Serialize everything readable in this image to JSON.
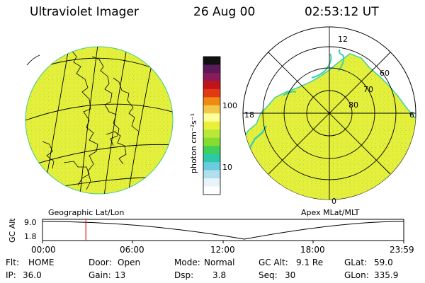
{
  "header": {
    "instrument": "Ultraviolet Imager",
    "date": "26 Aug 00",
    "time": "02:53:12 UT"
  },
  "panels": {
    "left_caption": "Geographic Lat/Lon",
    "right_caption": "Apex MLat/MLT"
  },
  "colorbar": {
    "unit_label": "photon cm⁻²s⁻¹",
    "tick_100": "100",
    "tick_10": "10",
    "colors": [
      "#111111",
      "#5a1a5a",
      "#8a1a5a",
      "#c0141a",
      "#e03a14",
      "#f08a10",
      "#f2c84a",
      "#ffff9a",
      "#e8f03a",
      "#b8e83a",
      "#88dc30",
      "#3ed05a",
      "#2cc8a8",
      "#6acce0",
      "#b0e0ee",
      "#e8f4f8",
      "#ffffff"
    ]
  },
  "polar": {
    "mlt_top": "12",
    "mlt_left": "18",
    "mlt_right": "6",
    "mlt_bottom": "0",
    "lat_60": "60",
    "lat_70": "70",
    "lat_80": "80"
  },
  "timeline": {
    "ylabel": "GC Alt",
    "y_top": "9.0",
    "y_bottom": "1.8",
    "ticks": [
      "00:00",
      "06:00",
      "12:00",
      "18:00",
      "23:59"
    ],
    "current_time_fraction": 0.12
  },
  "info": {
    "row1": [
      {
        "label": "Flt:",
        "value": "HOME"
      },
      {
        "label": "Door:",
        "value": "Open"
      },
      {
        "label": "Mode:",
        "value": "Normal"
      },
      {
        "label": "GC Alt:",
        "value": "9.1 Re"
      },
      {
        "label": "GLat:",
        "value": "59.0"
      }
    ],
    "row2": [
      {
        "label": "IP:",
        "value": "36.0"
      },
      {
        "label": "Gain:",
        "value": "13"
      },
      {
        "label": "Dsp:",
        "value": "3.8"
      },
      {
        "label": "Seq:",
        "value": "30"
      },
      {
        "label": "GLon:",
        "value": "335.9"
      }
    ]
  },
  "colors": {
    "aurora": "#e6f03c",
    "aurora_speckle": "#a8dc3a",
    "oval_edge": "#3ed0a8",
    "marker": "#cc2222"
  }
}
